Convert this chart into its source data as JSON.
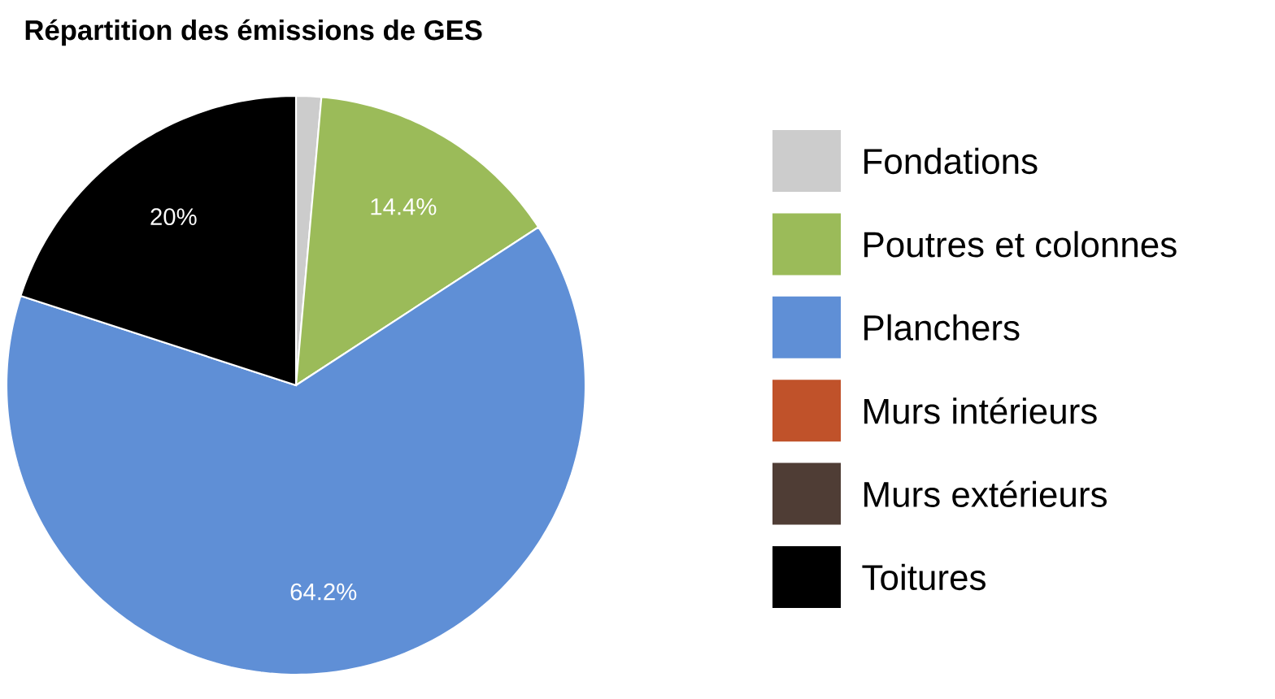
{
  "chart_data": {
    "type": "pie",
    "title": "Répartition des émissions de GES",
    "categories": [
      "Fondations",
      "Poutres et colonnes",
      "Planchers",
      "Murs intérieurs",
      "Murs extérieurs",
      "Toitures"
    ],
    "values": [
      1.4,
      14.4,
      64.2,
      0,
      0,
      20
    ],
    "colors": [
      "#cccccc",
      "#9bbb59",
      "#5f8fd6",
      "#c0522a",
      "#4f3d35",
      "#000000"
    ],
    "value_labels": [
      null,
      "14.4%",
      "64.2%",
      null,
      null,
      "20%"
    ],
    "legend": "right"
  }
}
